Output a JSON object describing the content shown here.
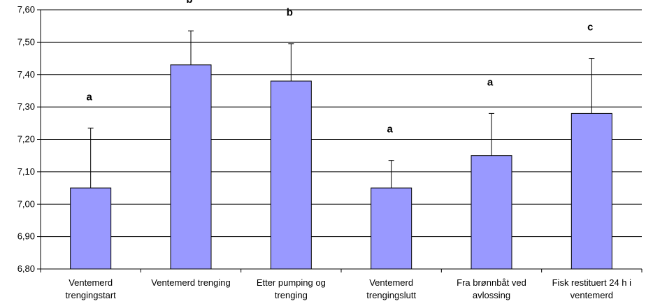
{
  "chart_data": {
    "type": "bar",
    "categories": [
      [
        "Ventemerd",
        "trengingstart"
      ],
      [
        "Ventemerd trenging"
      ],
      [
        "Etter pumping og",
        "trenging"
      ],
      [
        "Ventemerd",
        "trengingslutt"
      ],
      [
        "Fra brønnbåt ved",
        "avlossing"
      ],
      [
        "Fisk restituert 24 h i",
        "ventemerd"
      ]
    ],
    "values": [
      7.05,
      7.43,
      7.38,
      7.05,
      7.15,
      7.28
    ],
    "error_upper": [
      7.235,
      7.535,
      7.495,
      7.135,
      7.28,
      7.45
    ],
    "significance_letters": [
      "a",
      "b",
      "b",
      "a",
      "a",
      "c"
    ],
    "ylim": [
      6.8,
      7.6
    ],
    "yticks": [
      "6,80",
      "6,90",
      "7,00",
      "7,10",
      "7,20",
      "7,30",
      "7,40",
      "7,50",
      "7,60"
    ],
    "grid": true,
    "legend": "none",
    "colors": {
      "bar": "#9999ff",
      "bar_edge": "#000000",
      "grid": "#000000"
    }
  }
}
